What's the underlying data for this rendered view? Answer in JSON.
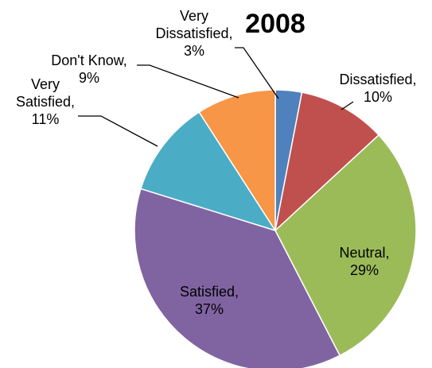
{
  "chart_data": {
    "type": "pie",
    "title": "2008",
    "slices": [
      {
        "name": "Very Dissatisfied",
        "value": 3,
        "label_lines": [
          "Very",
          "Dissatisfied,",
          "3%"
        ],
        "color": "#4F81BD"
      },
      {
        "name": "Dissatisfied",
        "value": 10,
        "label_lines": [
          "Dissatisfied,",
          "10%"
        ],
        "color": "#C0504D"
      },
      {
        "name": "Neutral",
        "value": 29,
        "label_lines": [
          "Neutral,",
          "29%"
        ],
        "color": "#9BBB59"
      },
      {
        "name": "Satisfied",
        "value": 37,
        "label_lines": [
          "Satisfied,",
          "37%"
        ],
        "color": "#8064A2"
      },
      {
        "name": "Very Satisfied",
        "value": 11,
        "label_lines": [
          "Very",
          "Satisfied,",
          "11%"
        ],
        "color": "#4BACC6"
      },
      {
        "name": "Don't Know",
        "value": 9,
        "label_lines": [
          "Don't Know,",
          "9%"
        ],
        "color": "#F79646"
      }
    ],
    "legend": "none"
  }
}
